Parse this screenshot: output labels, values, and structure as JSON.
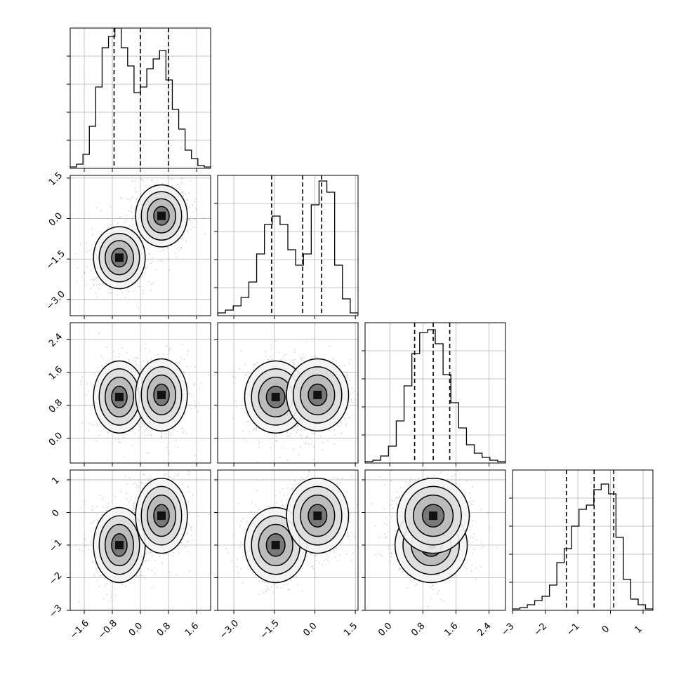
{
  "chart_data": {
    "type": "corner",
    "grid": true,
    "params": [
      {
        "range": [
          -2.0,
          2.0
        ],
        "ticks": [
          -1.6,
          -0.8,
          0.0,
          0.8,
          1.6
        ],
        "tick_labels": [
          "−1.6",
          "−0.8",
          "0.0",
          "0.8",
          "1.6"
        ],
        "quantiles": [
          -0.75,
          0.0,
          0.8
        ],
        "hist": [
          0.01,
          0.03,
          0.1,
          0.3,
          0.58,
          0.86,
          0.94,
          1.0,
          0.86,
          0.73,
          0.54,
          0.58,
          0.71,
          0.78,
          0.84,
          0.63,
          0.42,
          0.28,
          0.13,
          0.07,
          0.02,
          0.01
        ]
      },
      {
        "range": [
          -3.6,
          1.6
        ],
        "ticks": [
          -3.0,
          -1.5,
          0.0,
          1.5
        ],
        "tick_labels": [
          "−3.0",
          "−1.5",
          "0.0",
          "1.5"
        ],
        "quantiles": [
          -1.6,
          -0.45,
          0.25
        ],
        "hist": [
          0.02,
          0.04,
          0.07,
          0.13,
          0.24,
          0.44,
          0.65,
          0.71,
          0.65,
          0.47,
          0.36,
          0.44,
          0.79,
          0.96,
          0.88,
          0.36,
          0.12,
          0.02
        ]
      },
      {
        "range": [
          -0.6,
          2.8
        ],
        "ticks": [
          0.0,
          0.8,
          1.6,
          2.4
        ],
        "tick_labels": [
          "0.0",
          "0.8",
          "1.6",
          "2.4"
        ],
        "quantiles": [
          0.6,
          1.05,
          1.45
        ],
        "hist": [
          0.01,
          0.02,
          0.05,
          0.12,
          0.3,
          0.55,
          0.78,
          0.93,
          0.95,
          0.85,
          0.63,
          0.43,
          0.25,
          0.13,
          0.07,
          0.04,
          0.02,
          0.01
        ]
      },
      {
        "range": [
          -3.0,
          1.3
        ],
        "ticks": [
          -3,
          -2,
          -1,
          0,
          1
        ],
        "tick_labels": [
          "−3",
          "−2",
          "−1",
          "0",
          "1"
        ],
        "quantiles": [
          -1.35,
          -0.5,
          0.1
        ],
        "hist": [
          0.01,
          0.02,
          0.04,
          0.07,
          0.1,
          0.18,
          0.34,
          0.44,
          0.6,
          0.72,
          0.75,
          0.86,
          0.9,
          0.83,
          0.52,
          0.22,
          0.08,
          0.04,
          0.01
        ]
      }
    ],
    "modes": [
      [
        -0.6,
        -1.45,
        1.0,
        -1.0
      ],
      [
        0.6,
        0.1,
        1.05,
        -0.1
      ]
    ],
    "mode_spread": [
      0.32,
      0.5,
      0.38,
      0.5
    ],
    "mode_weights": [
      0.45,
      0.55
    ],
    "contour_levels": [
      0.2,
      0.45,
      0.7,
      0.92
    ],
    "xlabel": "",
    "ylabel": "",
    "title": ""
  }
}
